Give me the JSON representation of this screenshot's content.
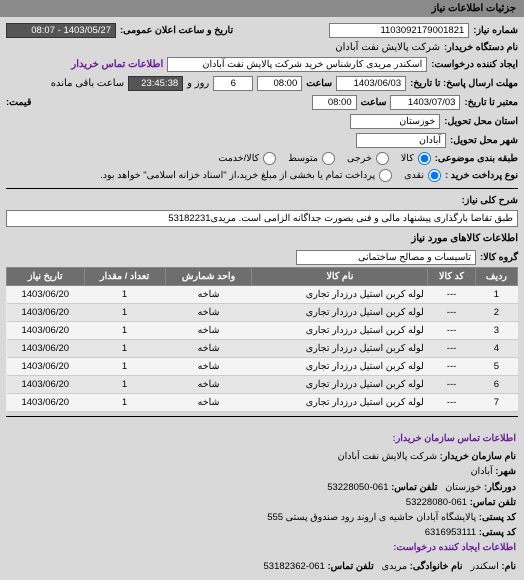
{
  "header": {
    "title": "جزئیات اطلاعات نیاز"
  },
  "top": {
    "req_no_label": "شماره نیاز:",
    "req_no": "1103092179001821",
    "announce_label": "تاریخ و ساعت اعلان عمومی:",
    "announce_value": "1403/05/27 - 08:07",
    "buyer_org_label": "نام دستگاه خریدار:",
    "buyer_org": "شرکت پالایش نفت آبادان",
    "requester_label": "ایجاد کننده درخواست:",
    "requester": "اسکندر مریدی کارشناس خرید شرکت پالایش نفت آبادان",
    "contact_link": "اطلاعات تماس خریدار",
    "deadline_label": "مهلت ارسال پاسخ: تا تاریخ:",
    "deadline_date": "1403/06/03",
    "time_label": "ساعت",
    "deadline_time": "08:00",
    "days_remain": "6",
    "days_remain_label": "روز و",
    "hms_remain": "23:45:38",
    "hms_label": "ساعت باقی مانده",
    "valid_label": "معتبر تا تاریخ:",
    "valid_date": "1403/07/03",
    "valid_time": "08:00",
    "province_label": "قیمت:",
    "delivery_prov_label": "استان محل تحویل:",
    "delivery_prov": "خوزستان",
    "delivery_city_label": "شهر محل تحویل:",
    "delivery_city": "آبادان",
    "priority_label": "طبقه بندی موضوعی:",
    "priority_opts": [
      "کالا",
      "خرجی",
      "متوسط",
      "کالا/خدمت"
    ],
    "pay_label": "نوع پرداخت خرید :",
    "pay_opts": [
      "نقدی",
      "پرداخت تمام یا بخشی از مبلغ خرید،از \"اسناد خزانه اسلامی\" خواهد بود."
    ]
  },
  "desc": {
    "label": "شرح کلی نیاز:",
    "text": "طبق تقاضا بارگذاری پیشنهاد مالی و فنی بصورت جداگانه الزامی است. مریدی53182231"
  },
  "goods": {
    "header": "اطلاعات کالاهای مورد نیاز",
    "group_label": "گروه کالا:",
    "group_value": "تاسیسات و مصالح ساختمانی",
    "columns": [
      "ردیف",
      "کد کالا",
      "نام کالا",
      "واحد شمارش",
      "تعداد / مقدار",
      "تاریخ نیاز"
    ],
    "rows": [
      [
        "1",
        "---",
        "لوله کربن استیل درزدار تجاری",
        "شاخه",
        "1",
        "1403/06/20"
      ],
      [
        "2",
        "---",
        "لوله کربن استیل درزدار تجاری",
        "شاخه",
        "1",
        "1403/06/20"
      ],
      [
        "3",
        "---",
        "لوله کربن استیل درزدار تجاری",
        "شاخه",
        "1",
        "1403/06/20"
      ],
      [
        "4",
        "---",
        "لوله کربن استیل درزدار تجاری",
        "شاخه",
        "1",
        "1403/06/20"
      ],
      [
        "5",
        "---",
        "لوله کربن استیل درزدار تجاری",
        "شاخه",
        "1",
        "1403/06/20"
      ],
      [
        "6",
        "---",
        "لوله کربن استیل درزدار تجاری",
        "شاخه",
        "1",
        "1403/06/20"
      ],
      [
        "7",
        "---",
        "لوله کربن استیل درزدار تجاری",
        "شاخه",
        "1",
        "1403/06/20"
      ]
    ]
  },
  "footer": {
    "header1": "اطلاعات تماس سازمان خریدار:",
    "org_label": "نام سازمان خریدار:",
    "org": "شرکت پالایش نفت آبادان",
    "city_label": "شهر:",
    "city": "آبادان",
    "prov_label": "دورنگار:",
    "prov": "خوزستان",
    "phone_label": "تلفن تماس:",
    "phone": "061-53228050",
    "fax_label": "تلفن تماس:",
    "fax": "061-53228080",
    "addr_label": "کد پستی:",
    "addr": "پالایشگاه آبادان حاشیه ی اروند رود صندوق پستی 555",
    "post_label": "کد پستی:",
    "post": "6316953111",
    "header2": "اطلاعات ایجاد کننده درخواست:",
    "name_label": "نام:",
    "name": "اسکندر",
    "famlabel": "نام خانوادگی:",
    "fam": "مریدی",
    "phone2_label": "تلفن تماس:",
    "phone2": "061-53182362"
  },
  "colors": {
    "header_bg": "#8a8a8a",
    "panel_bg": "#d9d9d9",
    "th_bg": "#6e6e6e",
    "link": "#6a1b9a"
  }
}
